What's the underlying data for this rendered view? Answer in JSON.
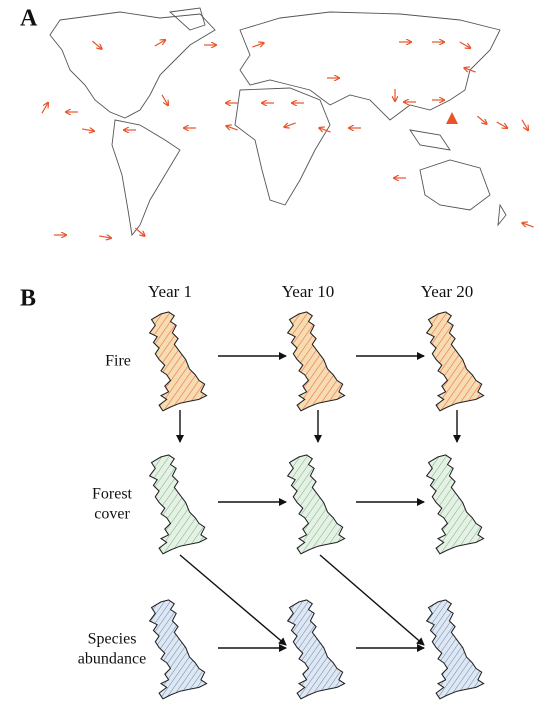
{
  "panels": [
    "A",
    "B"
  ],
  "columns": [
    "Year 1",
    "Year 10",
    "Year 20"
  ],
  "rows": [
    {
      "label_lines": [
        "Fire"
      ]
    },
    {
      "label_lines": [
        "Forest",
        "cover"
      ]
    },
    {
      "label_lines": [
        "Species",
        "abundance"
      ]
    }
  ]
}
